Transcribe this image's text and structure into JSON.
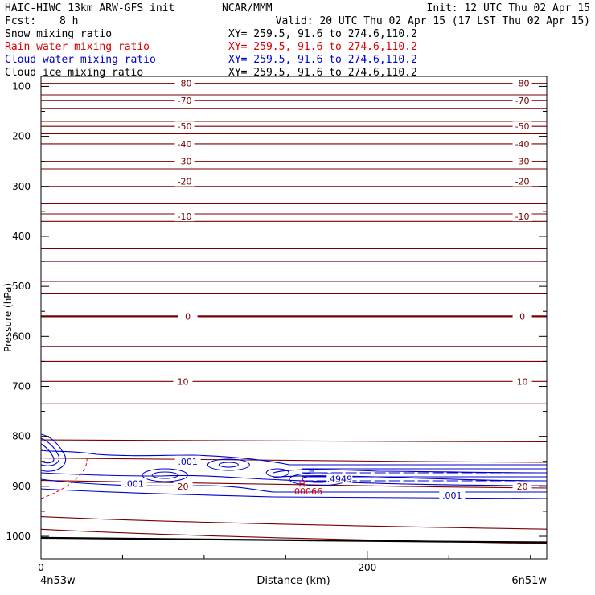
{
  "header": {
    "left_line1": "HAIC-HIWC 13km ARW-GFS init",
    "center_line1": "NCAR/MMM",
    "right_line1": "Init: 12 UTC Thu 02 Apr 15",
    "fcst_label": "Fcst:",
    "fcst_value": "8 h",
    "valid_line": "Valid: 20 UTC Thu 02 Apr 15 (17 LST Thu 02 Apr 15)"
  },
  "fields": [
    {
      "name": "Snow mixing ratio",
      "xy": "XY= 259.5, 91.6 to 274.6,110.2",
      "color": "#000000"
    },
    {
      "name": "Rain water mixing ratio",
      "xy": "XY= 259.5, 91.6 to 274.6,110.2",
      "color": "#dd0000"
    },
    {
      "name": "Cloud water mixing ratio",
      "xy": "XY= 259.5, 91.6 to 274.6,110.2",
      "color": "#0000cc"
    },
    {
      "name": "Cloud ice mixing ratio",
      "xy": "XY= 259.5, 91.6 to 274.6,110.2",
      "color": "#000000"
    }
  ],
  "colors": {
    "temperature": "#7a0000",
    "cloud_water": "#0000cc",
    "rain_water": "#dd0000",
    "ground": "#000000"
  },
  "chart_data": {
    "type": "line",
    "xlabel": "Distance (km)",
    "ylabel": "Pressure (hPa)",
    "x_range": [
      0,
      310
    ],
    "y_range": [
      1045,
      80
    ],
    "x_ticks": [
      0,
      200
    ],
    "y_ticks": [
      100,
      200,
      300,
      400,
      500,
      600,
      700,
      800,
      900,
      1000
    ],
    "x_minor_step": 50,
    "y_minor_step": 50,
    "endpoints": {
      "left": "4n53w",
      "right": "6n51w"
    },
    "isotherm_pressures": [
      80,
      94,
      117,
      128,
      144,
      170,
      180,
      195,
      215,
      250,
      265,
      300,
      335,
      355,
      370,
      425,
      450,
      490,
      515,
      560,
      620,
      650,
      690,
      735,
      810,
      850,
      900,
      980,
      1008
    ],
    "isotherm_labels": [
      {
        "text": "-80",
        "p": 94
      },
      {
        "text": "-70",
        "p": 128
      },
      {
        "text": "-50",
        "p": 180
      },
      {
        "text": "-40",
        "p": 215
      },
      {
        "text": "-30",
        "p": 250
      },
      {
        "text": "-20",
        "p": 290
      },
      {
        "text": "-10",
        "p": 360
      },
      {
        "text": "0",
        "p": 560
      },
      {
        "text": "10",
        "p": 690
      },
      {
        "text": "20",
        "p": 900
      }
    ],
    "cloud_water_labels": [
      {
        "text": ".001",
        "x": 90,
        "p": 850
      },
      {
        "text": ".001",
        "x": 57,
        "p": 895
      },
      {
        "text": ".001",
        "x": 252,
        "p": 918
      },
      {
        "text": ".4949",
        "x": 183,
        "p": 885
      }
    ],
    "rain_labels": [
      {
        "text": ".00066",
        "x": 163,
        "p": 910
      }
    ],
    "max_markers": [
      {
        "text": "H",
        "x": 166,
        "p": 870,
        "field": "cloud_water"
      },
      {
        "text": "H",
        "x": 160,
        "p": 895,
        "field": "rain"
      }
    ]
  }
}
